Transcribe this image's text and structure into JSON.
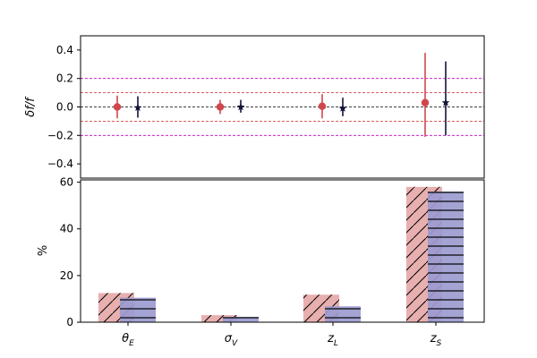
{
  "chart_data": [
    {
      "type": "scatter",
      "panel": "top",
      "ylabel": "δf/f",
      "ylim": [
        -0.5,
        0.5
      ],
      "yticks": [
        "0.4",
        "0.2",
        "0.0",
        "−0.2",
        "−0.4"
      ],
      "ytick_values": [
        0.4,
        0.2,
        0.0,
        -0.2,
        -0.4
      ],
      "categories": [
        "θ_E",
        "σ_V",
        "z_L",
        "z_S"
      ],
      "reference_lines": [
        {
          "y": 0.0,
          "color": "#000000",
          "style": "dashed"
        },
        {
          "y": 0.1,
          "color": "#d62728",
          "style": "dashed"
        },
        {
          "y": -0.1,
          "color": "#d62728",
          "style": "dashed"
        },
        {
          "y": 0.2,
          "color": "#c000c0",
          "style": "dashed"
        },
        {
          "y": -0.2,
          "color": "#c000c0",
          "style": "dashed"
        }
      ],
      "series": [
        {
          "marker": "circle",
          "color": "#d1464d",
          "values": [
            0.0,
            0.0,
            0.005,
            0.03
          ],
          "err_low": [
            0.08,
            0.05,
            0.085,
            0.24
          ],
          "err_high": [
            0.08,
            0.05,
            0.085,
            0.35
          ]
        },
        {
          "marker": "star",
          "color": "#14143c",
          "values": [
            -0.005,
            0.0,
            -0.01,
            0.03
          ],
          "err_low": [
            0.07,
            0.04,
            0.055,
            0.23
          ],
          "err_high": [
            0.08,
            0.05,
            0.075,
            0.29
          ]
        }
      ]
    },
    {
      "type": "bar",
      "panel": "bottom",
      "ylabel": "%",
      "ylim": [
        0,
        61
      ],
      "yticks": [
        "0",
        "20",
        "40",
        "60"
      ],
      "ytick_values": [
        0,
        20,
        40,
        60
      ],
      "categories": [
        "θ_E",
        "σ_V",
        "z_L",
        "z_S"
      ],
      "series": [
        {
          "color": "#e6a8a8",
          "hatch": "diagonal",
          "values": [
            12.5,
            3.0,
            11.8,
            58.0
          ]
        },
        {
          "color": "#9b9bd0",
          "hatch": "horizontal",
          "values": [
            10.5,
            2.3,
            6.8,
            56.0
          ]
        }
      ]
    }
  ]
}
